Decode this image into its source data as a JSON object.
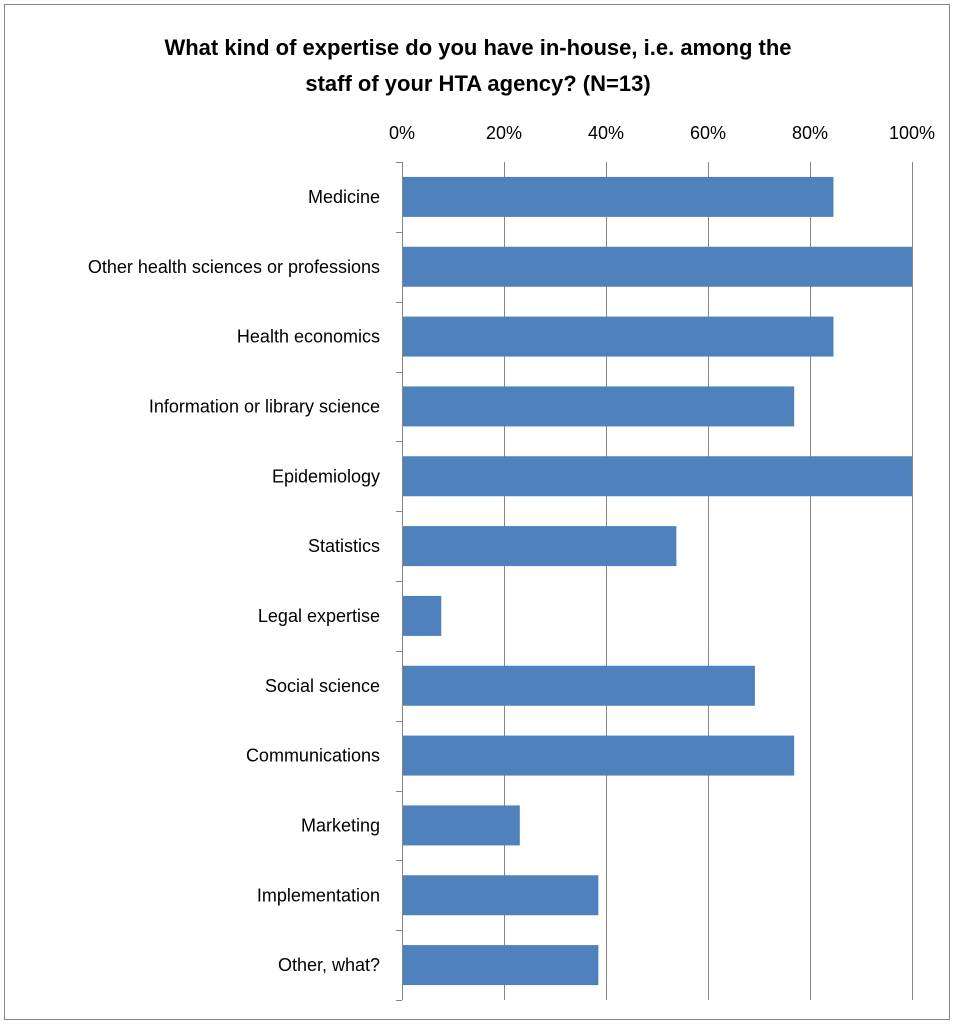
{
  "chart_data": {
    "type": "bar",
    "orientation": "horizontal",
    "title_lines": [
      "What kind of expertise do you have in-house, i.e. among the",
      "staff of your HTA agency? (N=13)"
    ],
    "categories": [
      "Medicine",
      "Other health sciences or professions",
      "Health economics",
      "Information or library science",
      "Epidemiology",
      "Statistics",
      "Legal expertise",
      "Social science",
      "Communications",
      "Marketing",
      "Implementation",
      "Other, what?"
    ],
    "values": [
      84.6,
      100,
      84.6,
      76.9,
      100,
      53.8,
      7.7,
      69.2,
      76.9,
      23.1,
      38.5,
      38.5
    ],
    "xlim": [
      0,
      100
    ],
    "xticks": [
      "0%",
      "20%",
      "40%",
      "60%",
      "80%",
      "100%"
    ],
    "xtick_values": [
      0,
      20,
      40,
      60,
      80,
      100
    ],
    "xaxis_position": "top",
    "grid": true,
    "legend": false,
    "bar_color": "#4F81BD",
    "grid_color": "#868686"
  }
}
